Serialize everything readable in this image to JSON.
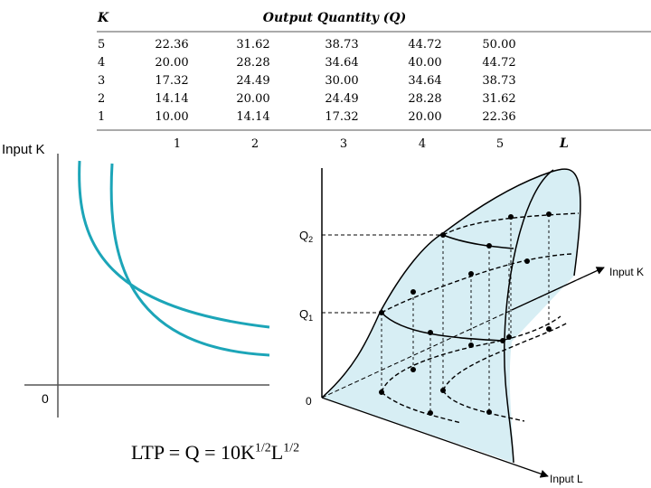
{
  "table": {
    "k_header": "K",
    "q_header": "Output Quantity (Q)",
    "l_header": "L",
    "k_values": [
      "5",
      "4",
      "3",
      "2",
      "1"
    ],
    "l_values": [
      "1",
      "2",
      "3",
      "4",
      "5"
    ],
    "rows": [
      [
        "22.36",
        "31.62",
        "38.73",
        "44.72",
        "50.00"
      ],
      [
        "20.00",
        "28.28",
        "34.64",
        "40.00",
        "44.72"
      ],
      [
        "17.32",
        "24.49",
        "30.00",
        "34.64",
        "38.73"
      ],
      [
        "14.14",
        "20.00",
        "24.49",
        "28.28",
        "31.62"
      ],
      [
        "10.00",
        "14.14",
        "17.32",
        "20.00",
        "22.36"
      ]
    ]
  },
  "isoquant_plot": {
    "y_axis_label": "Input K",
    "origin_label": "0",
    "curve_color": "#1ca5b8"
  },
  "surface_plot": {
    "q2_label": "Q",
    "q2_sub": "2",
    "q1_label": "Q",
    "q1_sub": "1",
    "origin_label": "0",
    "k_axis_label": "Input K",
    "l_axis_label": "Input L",
    "surface_color": "#d7eef4"
  },
  "formula": {
    "main": "LTP = Q = 10K",
    "k_exp": "1/2",
    "l_base": "L",
    "l_exp": "1/2"
  }
}
